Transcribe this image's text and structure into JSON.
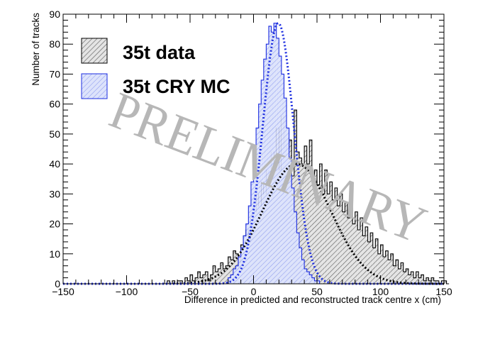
{
  "chart_data": {
    "type": "histogram",
    "title": "",
    "xlabel": "Difference in predicted and reconstructed track centre x (cm)",
    "ylabel": "Number of tracks",
    "xlim": [
      -150,
      150
    ],
    "ylim": [
      0,
      90
    ],
    "x_ticks": [
      "−150",
      "−100",
      "−50",
      "0",
      "50",
      "100",
      "150"
    ],
    "y_ticks": [
      "0",
      "10",
      "20",
      "30",
      "40",
      "50",
      "60",
      "70",
      "80",
      "90"
    ],
    "grid": false,
    "legend_position": "top-left",
    "watermark": "PRELIMINARY",
    "bin_width": 2,
    "series": [
      {
        "name": "35t data",
        "kind": "histogram",
        "color": "#000000",
        "fill": "hatched-grey",
        "bins": {
          "start": -70,
          "values": [
            0,
            1,
            0,
            1,
            0,
            1,
            1,
            0,
            2,
            1,
            3,
            1,
            2,
            4,
            2,
            3,
            4,
            1,
            3,
            6,
            4,
            5,
            7,
            5,
            6,
            9,
            8,
            11,
            10,
            7,
            13,
            16,
            18,
            14,
            22,
            24,
            30,
            26,
            34,
            30,
            38,
            35,
            44,
            40,
            52,
            38,
            56,
            46,
            45,
            48,
            36,
            58,
            44,
            42,
            40,
            46,
            40,
            48,
            36,
            38,
            33,
            40,
            30,
            38,
            30,
            34,
            28,
            32,
            26,
            30,
            24,
            27,
            22,
            26,
            20,
            24,
            18,
            22,
            16,
            19,
            14,
            17,
            12,
            15,
            10,
            13,
            9,
            11,
            8,
            10,
            6,
            8,
            5,
            7,
            4,
            5,
            3,
            4,
            2,
            4,
            2,
            3,
            1,
            2,
            1,
            2,
            1,
            1,
            0,
            1,
            1,
            0
          ]
        },
        "fit": {
          "type": "gaussian",
          "style": "dotted",
          "mean": 34,
          "sigma": 27,
          "peak": 40
        }
      },
      {
        "name": "35t CRY MC",
        "kind": "histogram",
        "color": "#1c2de0",
        "fill": "hatched-light-blue",
        "bins": {
          "start": -20,
          "values": [
            2,
            3,
            5,
            6,
            9,
            12,
            16,
            20,
            26,
            34,
            42,
            52,
            60,
            68,
            75,
            80,
            86,
            84,
            87,
            82,
            76,
            70,
            62,
            52,
            42,
            32,
            24,
            17,
            12,
            8,
            5,
            4,
            3,
            2,
            1,
            1
          ]
        },
        "fit": {
          "type": "gaussian",
          "style": "dotted",
          "mean": 19.5,
          "sigma": 12.2,
          "peak": 87
        }
      }
    ]
  }
}
